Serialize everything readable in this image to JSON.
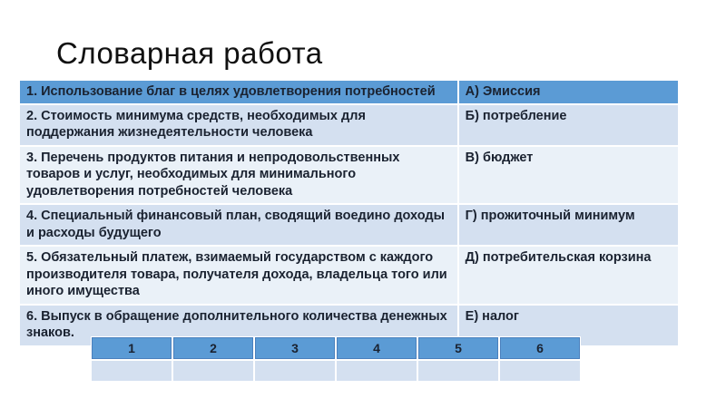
{
  "slide": {
    "title": "Словарная работа"
  },
  "colors": {
    "header_blue": "#5b9bd5",
    "band_light": "#d4e0f0",
    "band_pale": "#eaf1f8",
    "text_dark": "#1a2230",
    "header_border": "#4a80bd",
    "divider": "#ffffff"
  },
  "vocab_table": {
    "rows": [
      {
        "definition": "1. Использование благ в целях удовлетворения потребностей",
        "term": "А) Эмиссия"
      },
      {
        "definition": "2. Стоимость минимума средств, необходимых для поддержания жизнедеятельности человека",
        "term": "Б) потребление"
      },
      {
        "definition": "3. Перечень продуктов питания и непродовольственных товаров и услуг, необходимых для минимального удовлетворения потребностей человека",
        "term": "В) бюджет"
      },
      {
        "definition": "4. Специальный финансовый план, сводящий воедино доходы и расходы будущего",
        "term": "Г) прожиточный минимум"
      },
      {
        "definition": "5. Обязательный платеж, взимаемый государством с каждого производителя товара, получателя дохода, владельца того или иного имущества",
        "term": "Д) потребительская корзина"
      },
      {
        "definition": "6. Выпуск в обращение дополнительного количества денежных знаков.",
        "term": "Е) налог"
      }
    ]
  },
  "answer_table": {
    "headers": [
      "1",
      "2",
      "3",
      "4",
      "5",
      "6"
    ],
    "answers": [
      "",
      "",
      "",
      "",
      "",
      ""
    ]
  }
}
